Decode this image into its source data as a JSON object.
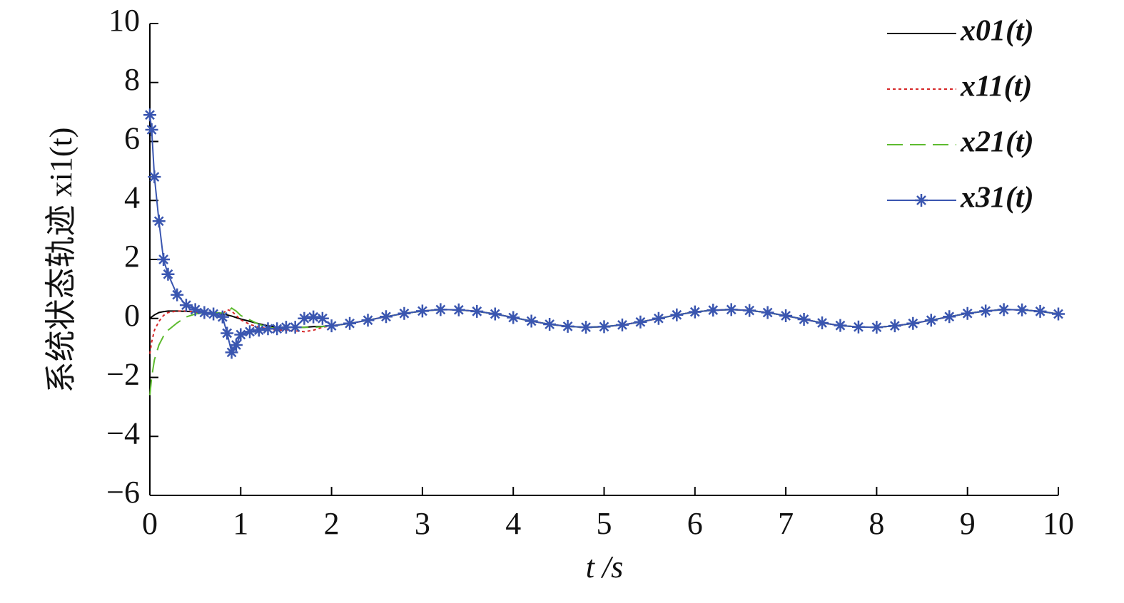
{
  "chart_data": {
    "type": "line",
    "xlabel": "t /s",
    "ylabel": "系统状态轨迹 xi1(t)",
    "x": [
      0,
      0.02,
      0.05,
      0.1,
      0.15,
      0.2,
      0.3,
      0.4,
      0.5,
      0.6,
      0.7,
      0.8,
      0.85,
      0.9,
      0.95,
      1.0,
      1.1,
      1.2,
      1.3,
      1.4,
      1.5,
      1.6,
      1.7,
      1.8,
      1.9,
      2.0,
      2.2,
      2.4,
      2.6,
      2.8,
      3.0,
      3.2,
      3.4,
      3.6,
      3.8,
      4.0,
      4.2,
      4.4,
      4.6,
      4.8,
      5.0,
      5.2,
      5.4,
      5.6,
      5.8,
      6.0,
      6.2,
      6.4,
      6.6,
      6.8,
      7.0,
      7.2,
      7.4,
      7.6,
      7.8,
      8.0,
      8.2,
      8.4,
      8.6,
      8.8,
      9.0,
      9.2,
      9.4,
      9.6,
      9.8,
      10.0
    ],
    "series": [
      {
        "name": "x01(t)",
        "color": "#000000",
        "linestyle": "solid",
        "marker": "none",
        "values": [
          0,
          0.05,
          0.12,
          0.2,
          0.23,
          0.25,
          0.25,
          0.24,
          0.22,
          0.2,
          0.18,
          0.15,
          0.12,
          0.08,
          0.03,
          -0.02,
          -0.1,
          -0.18,
          -0.25,
          -0.3,
          -0.3,
          -0.3,
          -0.3,
          -0.28,
          -0.27,
          -0.25,
          -0.17,
          -0.06,
          0.06,
          0.17,
          0.25,
          0.3,
          0.29,
          0.24,
          0.15,
          0.03,
          -0.09,
          -0.2,
          -0.27,
          -0.3,
          -0.28,
          -0.22,
          -0.12,
          0,
          0.12,
          0.22,
          0.28,
          0.3,
          0.27,
          0.2,
          0.09,
          -0.03,
          -0.15,
          -0.24,
          -0.29,
          -0.3,
          -0.25,
          -0.17,
          -0.06,
          0.06,
          0.17,
          0.25,
          0.3,
          0.29,
          0.24,
          0.15
        ]
      },
      {
        "name": "x11(t)",
        "color": "#d62728",
        "linestyle": "dotted",
        "marker": "none",
        "values": [
          -1.2,
          -0.8,
          -0.4,
          -0.1,
          0.1,
          0.2,
          0.25,
          0.25,
          0.22,
          0.2,
          0.18,
          0.15,
          0.3,
          0.25,
          0.1,
          -0.05,
          -0.2,
          -0.3,
          -0.35,
          -0.4,
          -0.4,
          -0.42,
          -0.45,
          -0.4,
          -0.3,
          -0.25,
          -0.17,
          -0.06,
          0.06,
          0.17,
          0.25,
          0.3,
          0.29,
          0.24,
          0.15,
          0.03,
          -0.09,
          -0.2,
          -0.27,
          -0.3,
          -0.28,
          -0.22,
          -0.12,
          0,
          0.12,
          0.22,
          0.28,
          0.3,
          0.27,
          0.2,
          0.09,
          -0.03,
          -0.15,
          -0.24,
          -0.29,
          -0.3,
          -0.25,
          -0.17,
          -0.06,
          0.06,
          0.17,
          0.25,
          0.3,
          0.29,
          0.24,
          0.15
        ]
      },
      {
        "name": "x21(t)",
        "color": "#5dbb2f",
        "linestyle": "dashed",
        "marker": "none",
        "values": [
          -2.6,
          -2.0,
          -1.4,
          -0.9,
          -0.6,
          -0.4,
          -0.15,
          0.05,
          0.15,
          0.2,
          0.2,
          0.18,
          0.2,
          0.35,
          0.25,
          0.1,
          -0.05,
          -0.2,
          -0.3,
          -0.35,
          -0.35,
          -0.3,
          -0.3,
          -0.3,
          -0.28,
          -0.25,
          -0.17,
          -0.06,
          0.06,
          0.17,
          0.25,
          0.3,
          0.29,
          0.24,
          0.15,
          0.03,
          -0.09,
          -0.2,
          -0.27,
          -0.3,
          -0.28,
          -0.22,
          -0.12,
          0,
          0.12,
          0.22,
          0.28,
          0.3,
          0.27,
          0.2,
          0.09,
          -0.03,
          -0.15,
          -0.24,
          -0.29,
          -0.3,
          -0.25,
          -0.17,
          -0.06,
          0.06,
          0.17,
          0.25,
          0.3,
          0.29,
          0.24,
          0.15
        ]
      },
      {
        "name": "x31(t)",
        "color": "#3a56b0",
        "linestyle": "solid",
        "marker": "asterisk",
        "values": [
          6.9,
          6.4,
          4.8,
          3.3,
          2.0,
          1.5,
          0.8,
          0.45,
          0.3,
          0.2,
          0.15,
          0.05,
          -0.5,
          -1.15,
          -0.9,
          -0.55,
          -0.45,
          -0.4,
          -0.35,
          -0.35,
          -0.3,
          -0.3,
          0.0,
          0.05,
          0.0,
          -0.25,
          -0.17,
          -0.06,
          0.06,
          0.17,
          0.25,
          0.3,
          0.29,
          0.24,
          0.15,
          0.03,
          -0.09,
          -0.2,
          -0.27,
          -0.3,
          -0.28,
          -0.22,
          -0.12,
          0,
          0.12,
          0.22,
          0.28,
          0.3,
          0.27,
          0.2,
          0.09,
          -0.03,
          -0.15,
          -0.24,
          -0.29,
          -0.3,
          -0.25,
          -0.17,
          -0.06,
          0.06,
          0.17,
          0.25,
          0.3,
          0.29,
          0.24,
          0.15
        ]
      }
    ],
    "xlim": [
      0,
      10
    ],
    "xticks": [
      0,
      1,
      2,
      3,
      4,
      5,
      6,
      7,
      8,
      9,
      10
    ],
    "ylim": [
      -6,
      10
    ],
    "yticks": [
      {
        "value": -6,
        "label": "−6"
      },
      {
        "value": -4,
        "label": "−4"
      },
      {
        "value": -2,
        "label": "−2"
      },
      0,
      2,
      4,
      6,
      8,
      10
    ],
    "grid": false,
    "legend": "upper right"
  }
}
